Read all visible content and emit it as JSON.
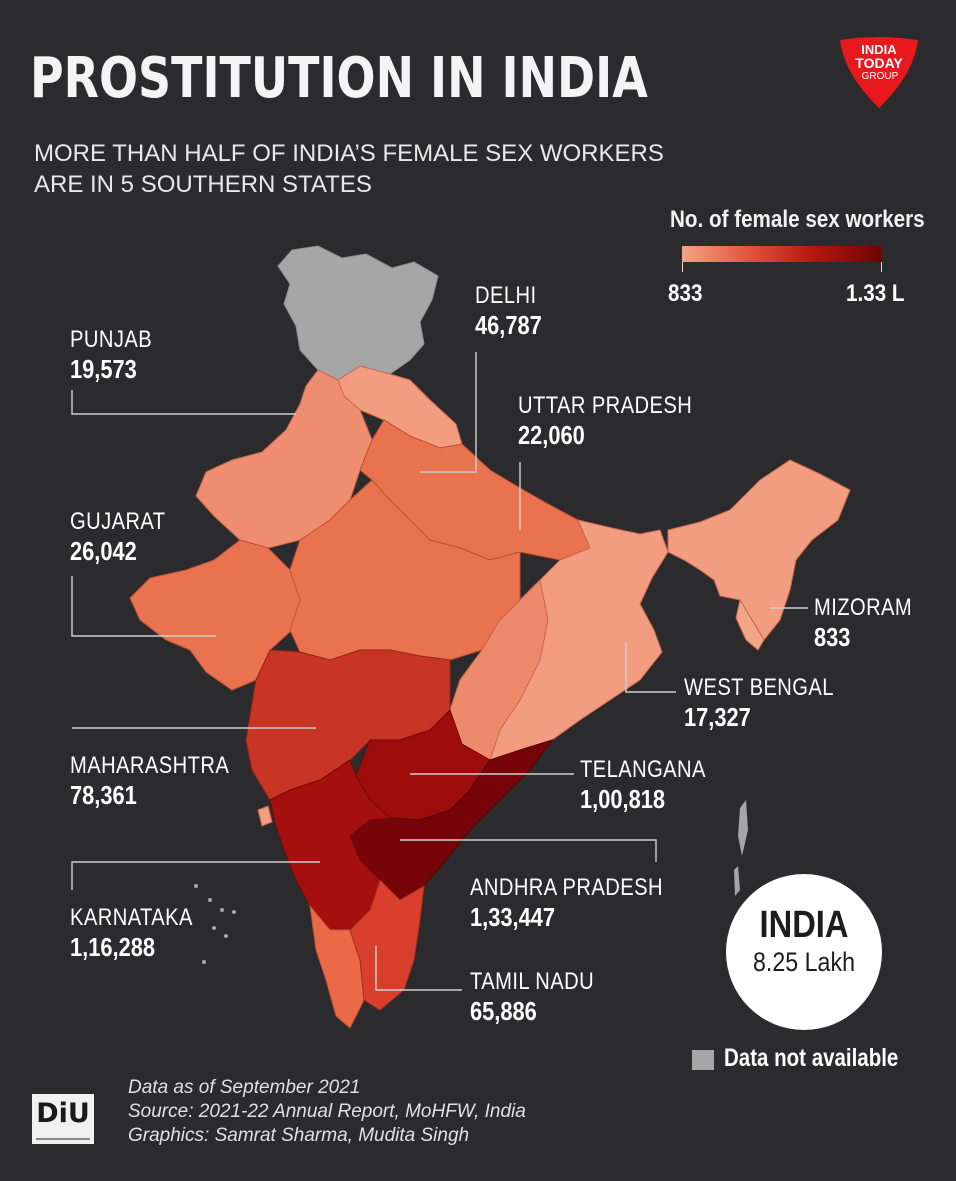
{
  "title": "PROSTITUTION IN INDIA",
  "subtitle": "MORE THAN HALF OF INDIA’S FEMALE SEX WORKERS\nARE IN 5 SOUTHERN STATES",
  "logo": {
    "name": "india-today-group-logo",
    "line1": "INDIA",
    "line2": "TODAY",
    "line3": "GROUP",
    "color": "#e8191c"
  },
  "legend": {
    "title": "No. of female sex workers",
    "min": "833",
    "max": "1.33 L",
    "colors": [
      "#f4a585",
      "#e2543c",
      "#b3150f",
      "#6e0306"
    ]
  },
  "states": [
    {
      "name": "DELHI",
      "value": "46,787"
    },
    {
      "name": "PUNJAB",
      "value": "19,573"
    },
    {
      "name": "UTTAR PRADESH",
      "value": "22,060"
    },
    {
      "name": "GUJARAT",
      "value": "26,042"
    },
    {
      "name": "MIZORAM",
      "value": "833"
    },
    {
      "name": "WEST BENGAL",
      "value": "17,327"
    },
    {
      "name": "MAHARASHTRA",
      "value": "78,361"
    },
    {
      "name": "TELANGANA",
      "value": "1,00,818"
    },
    {
      "name": "ANDHRA PRADESH",
      "value": "1,33,447"
    },
    {
      "name": "KARNATAKA",
      "value": "1,16,288"
    },
    {
      "name": "TAMIL NADU",
      "value": "65,886"
    }
  ],
  "total": {
    "label": "INDIA",
    "value": "8.25 Lakh"
  },
  "not_available": {
    "label": "Data not available",
    "color": "#a6a6a6"
  },
  "diu_logo": "DiU",
  "notes": {
    "date": "Data as of September 2021",
    "source": "Source: 2021-22 Annual Report, MoHFW, India",
    "graphics": "Graphics: Samrat Sharma, Mudita Singh"
  },
  "colors": {
    "background": "#2b2b2d",
    "light": "#f0957a",
    "medium": "#e2543c",
    "dark": "#b3150f",
    "darkest": "#7a0508",
    "na": "#a6a6a6"
  }
}
